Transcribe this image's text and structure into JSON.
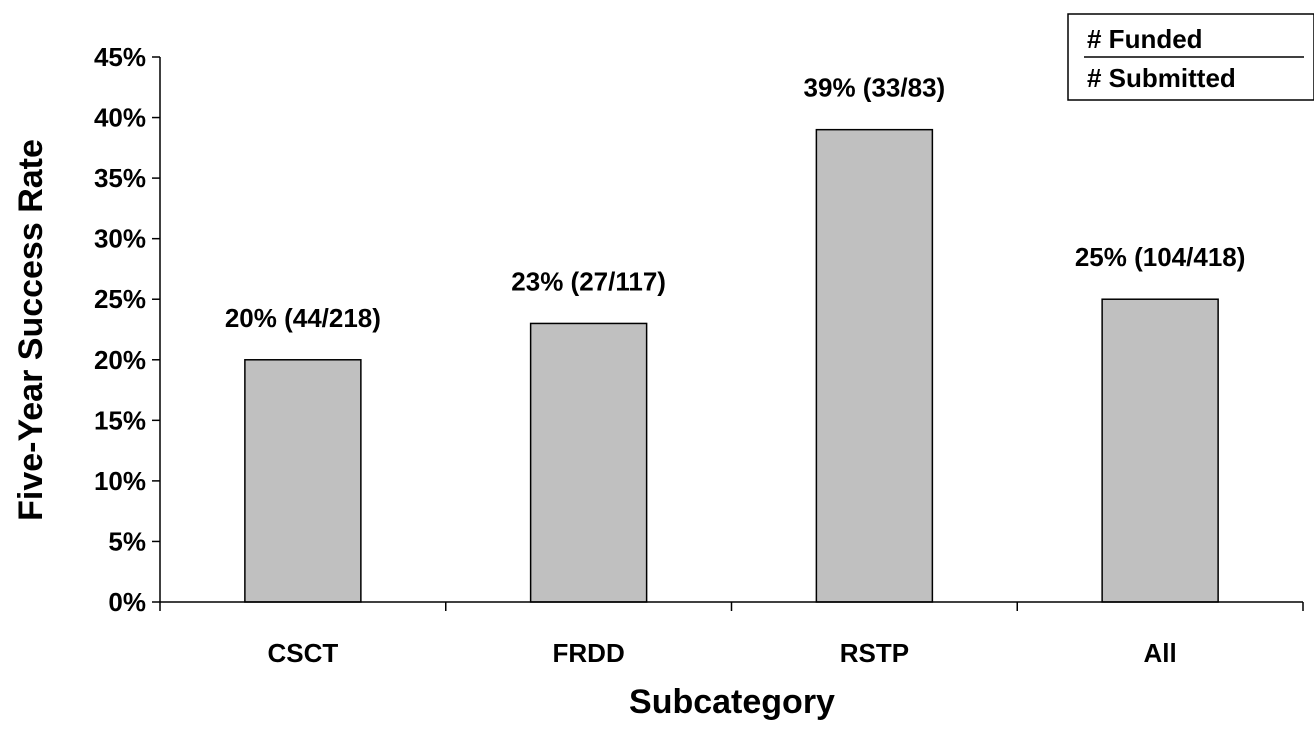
{
  "chart_data": {
    "type": "bar",
    "title": "",
    "xlabel": "Subcategory",
    "ylabel": "Five-Year Success Rate",
    "categories": [
      "CSCT",
      "FRDD",
      "RSTP",
      "All"
    ],
    "values": [
      20,
      23,
      39,
      25
    ],
    "value_unit": "%",
    "data_labels": [
      "20% (44/218)",
      "23% (27/117)",
      "39% (33/83)",
      "25% (104/418)"
    ],
    "ylim": [
      0,
      45
    ],
    "yticks": [
      "0%",
      "5%",
      "10%",
      "15%",
      "20%",
      "25%",
      "30%",
      "35%",
      "40%",
      "45%"
    ],
    "grid": false,
    "bar_color": "#c0c0c0",
    "legend": {
      "placement": "top-right",
      "line1": "# Funded",
      "line2": "# Submitted"
    }
  }
}
